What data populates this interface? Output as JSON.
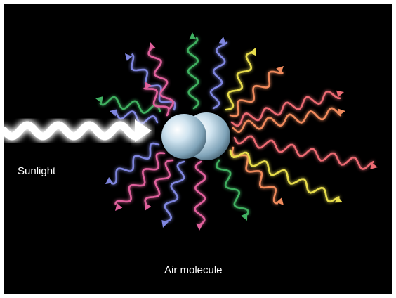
{
  "labels": {
    "sunlight": "Sunlight",
    "air_molecule": "Air molecule"
  },
  "colors": {
    "background": "#000000",
    "incoming_light": "#ffffff",
    "molecule": "#9fc4d8",
    "scattered": [
      "#7f86e0",
      "#e0609c",
      "#3fb061",
      "#e8dd4c",
      "#f08a5c",
      "#ec6a72"
    ]
  },
  "scattered_wave_colors": [
    "blue",
    "pink",
    "green",
    "blue",
    "yellow",
    "orange",
    "red",
    "orange",
    "red",
    "orange",
    "yellow",
    "green",
    "pink",
    "blue",
    "pink",
    "pink",
    "blue",
    "green",
    "blue",
    "pink"
  ]
}
